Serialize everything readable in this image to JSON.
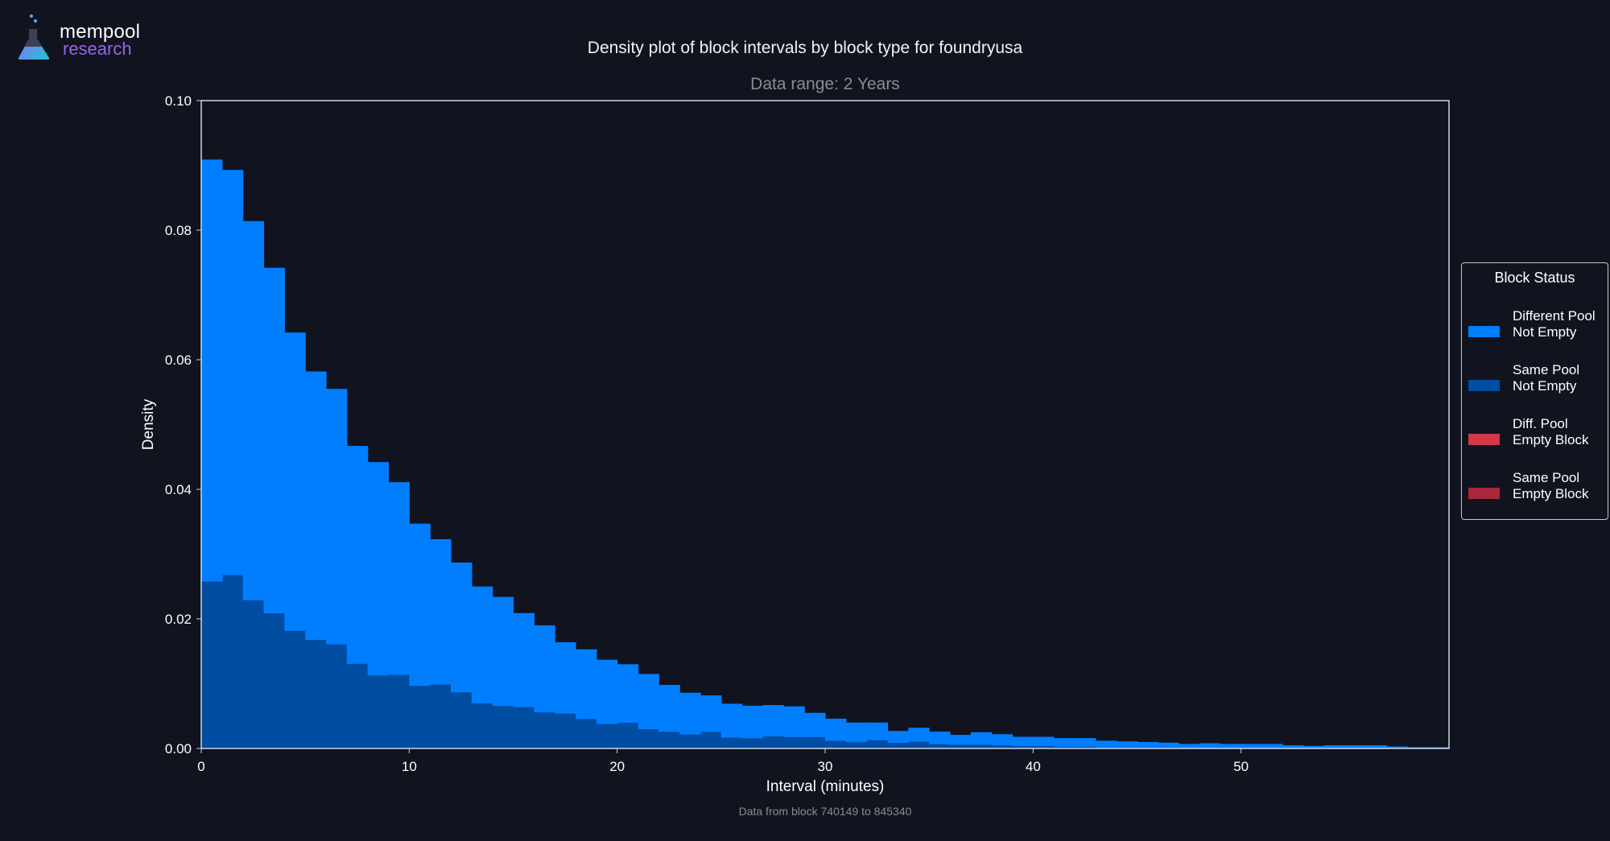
{
  "brand": {
    "line1": "mempool",
    "line2": "research",
    "icon": "flask-icon"
  },
  "footer": "Data from block 740149 to 845340",
  "colors": {
    "background": "#11131f",
    "diff_pool_not_empty": "#007efe",
    "same_pool_not_empty": "#004da2",
    "diff_pool_empty": "#d33947",
    "same_pool_empty": "#a9283a",
    "axis": "#c8d8ec"
  },
  "legend": {
    "title": "Block Status",
    "items": [
      {
        "line1": "Different Pool",
        "line2": "Not Empty",
        "color": "#007efe"
      },
      {
        "line1": "Same Pool",
        "line2": "Not Empty",
        "color": "#004da2"
      },
      {
        "line1": "Diff. Pool",
        "line2": "Empty Block",
        "color": "#d33947"
      },
      {
        "line1": "Same Pool",
        "line2": "Empty Block",
        "color": "#a9283a"
      }
    ]
  },
  "chart_data": {
    "type": "bar",
    "title": "Density plot of block intervals by block type for foundryusa",
    "subtitle": "Data range: 2 Years",
    "xlabel": "Interval (minutes)",
    "ylabel": "Density",
    "xlim": [
      0,
      60
    ],
    "ylim": [
      0,
      0.1
    ],
    "xticks": [
      0,
      10,
      20,
      30,
      40,
      50
    ],
    "xtick_labels": [
      "0",
      "10",
      "20",
      "30",
      "40",
      "50"
    ],
    "yticks": [
      0,
      0.02,
      0.04,
      0.06,
      0.08,
      0.1
    ],
    "ytick_labels": [
      "0.00",
      "0.02",
      "0.04",
      "0.06",
      "0.08",
      "0.10"
    ],
    "bin_width": 1,
    "stacked": true,
    "legend_position": "right",
    "grid": false,
    "series": [
      {
        "name": "Same Pool\nNot Empty",
        "color": "#004da2",
        "values": [
          0.0258,
          0.0268,
          0.0229,
          0.0209,
          0.0182,
          0.0168,
          0.0161,
          0.0131,
          0.0113,
          0.0114,
          0.0097,
          0.0099,
          0.0087,
          0.007,
          0.0066,
          0.0064,
          0.0056,
          0.0054,
          0.0046,
          0.0038,
          0.004,
          0.003,
          0.0026,
          0.0022,
          0.0026,
          0.0017,
          0.0016,
          0.0019,
          0.0018,
          0.0018,
          0.0012,
          0.001,
          0.0013,
          0.0009,
          0.0011,
          0.0007,
          0.0006,
          0.0006,
          0.0005,
          0.0004,
          0.0004,
          0.0003,
          0.0003,
          0.0002,
          0.0002,
          0.0002,
          0.0002,
          0.0001,
          0.0001,
          0.0001,
          0.0001,
          0.0001,
          0.0001,
          0.0001,
          0.0001,
          0.0001,
          0.0001,
          0.0,
          0.0,
          0.0
        ]
      },
      {
        "name": "Different Pool\nNot Empty",
        "color": "#007efe",
        "values": [
          0.0651,
          0.0625,
          0.0585,
          0.0533,
          0.046,
          0.0414,
          0.0394,
          0.0336,
          0.0329,
          0.0297,
          0.025,
          0.0224,
          0.02,
          0.018,
          0.0168,
          0.0145,
          0.0134,
          0.011,
          0.0107,
          0.0099,
          0.009,
          0.0085,
          0.0072,
          0.0064,
          0.0056,
          0.0052,
          0.005,
          0.0048,
          0.0047,
          0.0037,
          0.0034,
          0.003,
          0.0027,
          0.0018,
          0.0021,
          0.0019,
          0.0015,
          0.0019,
          0.0017,
          0.0014,
          0.0014,
          0.0013,
          0.0013,
          0.001,
          0.0009,
          0.0008,
          0.0007,
          0.0006,
          0.0007,
          0.0006,
          0.0006,
          0.0006,
          0.0004,
          0.0003,
          0.0004,
          0.0004,
          0.0004,
          0.0003,
          0.0002,
          0.0002
        ]
      }
    ]
  }
}
